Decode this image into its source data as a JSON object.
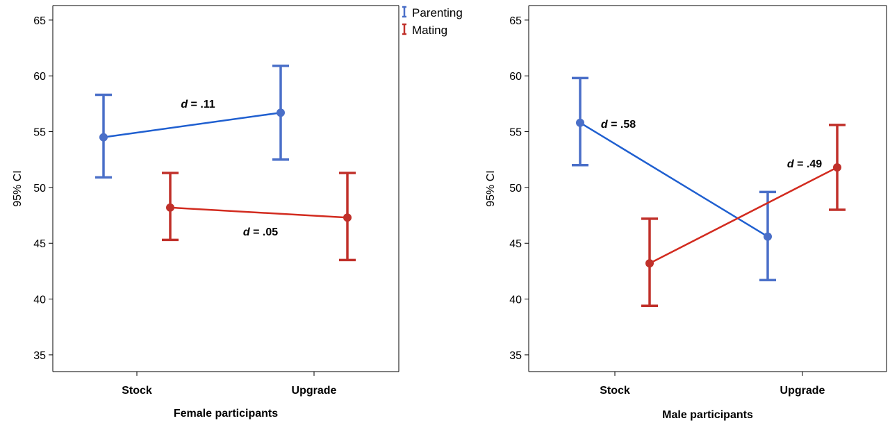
{
  "legend": {
    "position": "top-right of left panel",
    "items": [
      {
        "label": "Parenting",
        "color": "#4a6fc8"
      },
      {
        "label": "Mating",
        "color": "#c0302a"
      }
    ]
  },
  "chart_data": [
    {
      "type": "line",
      "xlabel": "Female participants",
      "ylabel": "95% CI",
      "categories": [
        "Stock",
        "Upgrade"
      ],
      "ylim": [
        33.5,
        66.3
      ],
      "yticks": [
        35,
        40,
        45,
        50,
        55,
        60,
        65
      ],
      "grid": false,
      "series": [
        {
          "name": "Parenting",
          "line_color": "#1f5fd0",
          "bar_color": "#4a6fc8",
          "means": [
            54.5,
            56.7
          ],
          "lower": [
            50.9,
            52.5
          ],
          "upper": [
            58.3,
            60.9
          ]
        },
        {
          "name": "Mating",
          "line_color": "#d22b1f",
          "bar_color": "#c0302a",
          "means": [
            48.2,
            47.3
          ],
          "lower": [
            45.3,
            43.5
          ],
          "upper": [
            51.3,
            51.3
          ]
        }
      ],
      "annotations": [
        {
          "text_prefix": "d",
          "text_value": " = .11",
          "near_series": "Parenting"
        },
        {
          "text_prefix": "d",
          "text_value": " = .05",
          "near_series": "Mating"
        }
      ]
    },
    {
      "type": "line",
      "xlabel": "Male participants",
      "ylabel": "95% CI",
      "categories": [
        "Stock",
        "Upgrade"
      ],
      "ylim": [
        33.5,
        66.3
      ],
      "yticks": [
        35,
        40,
        45,
        50,
        55,
        60,
        65
      ],
      "grid": false,
      "series": [
        {
          "name": "Parenting",
          "line_color": "#1f5fd0",
          "bar_color": "#4a6fc8",
          "means": [
            55.8,
            45.6
          ],
          "lower": [
            52.0,
            41.7
          ],
          "upper": [
            59.8,
            49.6
          ]
        },
        {
          "name": "Mating",
          "line_color": "#d22b1f",
          "bar_color": "#c0302a",
          "means": [
            43.2,
            51.8
          ],
          "lower": [
            39.4,
            48.0
          ],
          "upper": [
            47.2,
            55.6
          ]
        }
      ],
      "annotations": [
        {
          "text_prefix": "d",
          "text_value": " = .58",
          "near_series": "Parenting"
        },
        {
          "text_prefix": "d",
          "text_value": " = .49",
          "near_series": "Mating"
        }
      ]
    }
  ]
}
